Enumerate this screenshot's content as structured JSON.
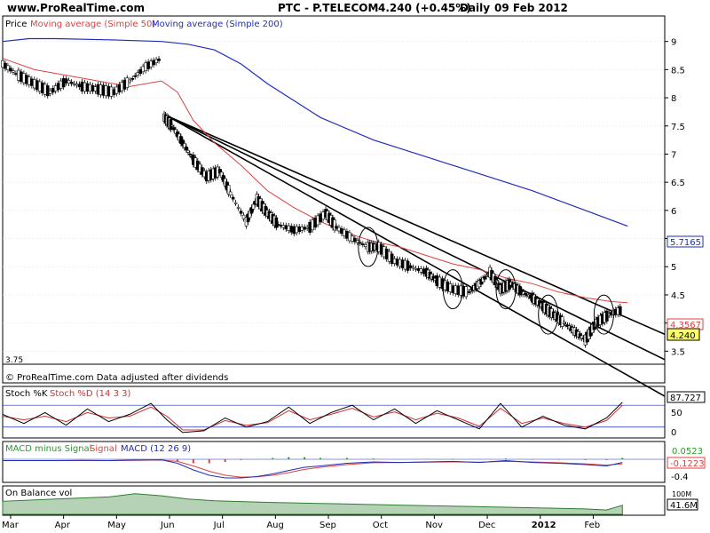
{
  "header": {
    "site": "www.ProRealTime.com",
    "symbol": "PTC - P.TELECOM",
    "quote": "4.240 (+0.45%)",
    "period": "Daily",
    "date": "09 Feb 2012"
  },
  "colors": {
    "price": "#000000",
    "ma50": "#e04040",
    "ma200": "#1f2fb8",
    "stoch_k": "#000000",
    "stoch_d": "#d03030",
    "macd_line": "#1f2fb8",
    "signal_line": "#e04040",
    "macd_hist": "#2a9a2a",
    "obv_fill": "#2f7d2f",
    "last_box": "#ffff66",
    "panel_bg": "#ffffff"
  },
  "main_panel": {
    "legend": {
      "price": "Price",
      "ma50": "Moving average (Simple 50)",
      "ma200": "Moving average (Simple 200)"
    },
    "footer_note": "© ProRealTime.com  Data adjusted after dividends",
    "bottom_left_value": "3.75",
    "last_price": "4.240",
    "ma200_last": "5.7165",
    "ma50_last": "4.3567"
  },
  "stoch_panel": {
    "legend_k": "Stoch %K",
    "legend_d": "Stoch %D (14 3 3)",
    "last_value": "87.727",
    "ticks": [
      "50",
      "0"
    ]
  },
  "macd_panel": {
    "legend_hist": "MACD minus Signal",
    "legend_signal": "Signal",
    "legend_macd": "MACD (12 26 9)",
    "last_hist": "0.0523",
    "last_macd": "-0.1223",
    "tick": "-0.4"
  },
  "obv_panel": {
    "legend": "On Balance vol",
    "last_value": "41.6M",
    "tick_partial": "100M"
  },
  "chart_data": {
    "type": "candlestick",
    "title": "PTC - P.TELECOM",
    "period": "Daily",
    "y_axis_main": {
      "ticks": [
        3.5,
        4,
        4.5,
        5,
        5.5,
        6,
        6.5,
        7,
        7.5,
        8,
        8.5,
        9
      ],
      "tick_labels": [
        "3.5",
        "4",
        "4.5",
        "5",
        "5.5",
        "6",
        "6.5",
        "7",
        "7.5",
        "8",
        "8.5",
        "9"
      ],
      "ylim": [
        3.3,
        9.2
      ]
    },
    "x_axis": {
      "labels": [
        "Mar",
        "Apr",
        "May",
        "Jun",
        "Jul",
        "Aug",
        "Sep",
        "Oct",
        "Nov",
        "Dec",
        "2012",
        "Feb"
      ],
      "xlim": [
        0,
        12.5
      ]
    },
    "close_series": {
      "name": "Price",
      "x": [
        0.0,
        0.3,
        0.6,
        0.9,
        1.2,
        1.5,
        1.8,
        2.1,
        2.4,
        2.7,
        3.0,
        3.05,
        3.2,
        3.4,
        3.6,
        3.85,
        4.1,
        4.3,
        4.6,
        4.8,
        5.0,
        5.2,
        5.5,
        5.8,
        6.1,
        6.3,
        6.6,
        6.9,
        7.1,
        7.4,
        7.7,
        8.0,
        8.2,
        8.5,
        8.8,
        9.0,
        9.2,
        9.4,
        9.6,
        9.8,
        10.0,
        10.2,
        10.4,
        10.6,
        10.8,
        11.0,
        11.2,
        11.45,
        11.7
      ],
      "y": [
        8.6,
        8.4,
        8.25,
        8.1,
        8.3,
        8.2,
        8.15,
        8.1,
        8.3,
        8.55,
        8.7,
        7.65,
        7.5,
        7.2,
        6.9,
        6.6,
        6.7,
        6.3,
        5.8,
        6.2,
        5.95,
        5.75,
        5.65,
        5.7,
        5.95,
        5.7,
        5.5,
        5.35,
        5.35,
        5.1,
        5.0,
        4.9,
        4.75,
        4.6,
        4.55,
        4.7,
        4.9,
        4.6,
        4.7,
        4.55,
        4.45,
        4.3,
        4.15,
        4.0,
        3.85,
        3.7,
        4.0,
        4.15,
        4.24
      ]
    },
    "ma50": {
      "name": "Moving average (Simple 50)",
      "x": [
        0.0,
        0.6,
        1.2,
        1.8,
        2.4,
        3.0,
        3.3,
        3.6,
        4.0,
        4.5,
        5.0,
        5.5,
        6.0,
        6.5,
        7.0,
        7.5,
        8.0,
        8.5,
        9.0,
        9.5,
        10.0,
        10.5,
        11.0,
        11.5,
        11.8
      ],
      "y": [
        8.7,
        8.5,
        8.4,
        8.3,
        8.2,
        8.3,
        8.1,
        7.6,
        7.2,
        6.8,
        6.35,
        6.05,
        5.8,
        5.6,
        5.45,
        5.35,
        5.2,
        5.05,
        4.95,
        4.8,
        4.7,
        4.55,
        4.45,
        4.38,
        4.36
      ]
    },
    "ma200": {
      "name": "Moving average (Simple 200)",
      "x": [
        0.0,
        0.5,
        1.0,
        2.0,
        3.0,
        3.5,
        4.0,
        4.5,
        5.0,
        6.0,
        7.0,
        8.0,
        9.0,
        10.0,
        11.0,
        11.8
      ],
      "y": [
        9.0,
        9.05,
        9.05,
        9.03,
        9.0,
        8.95,
        8.85,
        8.6,
        8.25,
        7.65,
        7.25,
        6.95,
        6.65,
        6.35,
        6.0,
        5.72
      ]
    },
    "trendlines": [
      {
        "x": [
          3.1,
          12.5
        ],
        "y": [
          7.68,
          3.8
        ]
      },
      {
        "x": [
          3.1,
          12.5
        ],
        "y": [
          7.68,
          3.35
        ]
      },
      {
        "x": [
          3.1,
          12.5
        ],
        "y": [
          7.68,
          2.7
        ]
      }
    ],
    "circled_x": [
      6.9,
      8.5,
      9.5,
      10.3,
      11.35
    ],
    "stochastic": {
      "ylim": [
        -5,
        100
      ],
      "guides": [
        80,
        20
      ],
      "k": {
        "x": [
          0,
          0.4,
          0.8,
          1.2,
          1.6,
          2.0,
          2.4,
          2.8,
          3.1,
          3.4,
          3.8,
          4.2,
          4.6,
          5.0,
          5.4,
          5.8,
          6.2,
          6.6,
          7.0,
          7.4,
          7.8,
          8.2,
          8.6,
          9.0,
          9.4,
          9.8,
          10.2,
          10.6,
          11.0,
          11.4,
          11.7
        ],
        "y": [
          55,
          30,
          60,
          25,
          70,
          35,
          55,
          85,
          40,
          5,
          10,
          45,
          20,
          35,
          75,
          30,
          60,
          80,
          40,
          70,
          30,
          65,
          40,
          15,
          85,
          20,
          50,
          25,
          15,
          45,
          88
        ]
      },
      "d": {
        "x": [
          0,
          0.4,
          0.8,
          1.2,
          1.6,
          2.0,
          2.4,
          2.8,
          3.1,
          3.4,
          3.8,
          4.2,
          4.6,
          5.0,
          5.4,
          5.8,
          6.2,
          6.6,
          7.0,
          7.4,
          7.8,
          8.2,
          8.6,
          9.0,
          9.4,
          9.8,
          10.2,
          10.6,
          11.0,
          11.4,
          11.7
        ],
        "y": [
          50,
          40,
          50,
          35,
          60,
          45,
          50,
          75,
          50,
          12,
          12,
          38,
          25,
          32,
          65,
          40,
          55,
          72,
          48,
          62,
          40,
          58,
          45,
          22,
          72,
          30,
          45,
          30,
          20,
          38,
          80
        ]
      }
    },
    "macd": {
      "ylim": [
        -0.8,
        0.2
      ],
      "x": [
        0,
        0.5,
        1.0,
        1.5,
        2.0,
        2.5,
        3.0,
        3.3,
        3.6,
        3.9,
        4.2,
        4.5,
        4.8,
        5.1,
        5.4,
        5.7,
        6.0,
        6.5,
        7.0,
        7.5,
        8.0,
        8.5,
        9.0,
        9.5,
        10.0,
        10.5,
        11.0,
        11.4,
        11.7
      ],
      "macd": [
        -0.05,
        -0.05,
        -0.05,
        -0.04,
        -0.05,
        -0.03,
        -0.02,
        -0.15,
        -0.4,
        -0.6,
        -0.7,
        -0.7,
        -0.65,
        -0.55,
        -0.42,
        -0.3,
        -0.25,
        -0.15,
        -0.1,
        -0.12,
        -0.1,
        -0.08,
        -0.12,
        -0.05,
        -0.12,
        -0.15,
        -0.2,
        -0.25,
        -0.12
      ],
      "signal": [
        -0.05,
        -0.05,
        -0.05,
        -0.05,
        -0.05,
        -0.04,
        -0.03,
        -0.08,
        -0.25,
        -0.45,
        -0.6,
        -0.67,
        -0.66,
        -0.6,
        -0.5,
        -0.38,
        -0.3,
        -0.2,
        -0.13,
        -0.12,
        -0.11,
        -0.1,
        -0.11,
        -0.08,
        -0.1,
        -0.13,
        -0.17,
        -0.22,
        -0.17
      ]
    },
    "obv": {
      "x": [
        0,
        1,
        2,
        2.5,
        3.0,
        3.5,
        4.0,
        5.0,
        6.0,
        7.0,
        8.0,
        9.0,
        10.0,
        11.0,
        11.4,
        11.7
      ],
      "y": [
        60,
        70,
        80,
        95,
        85,
        70,
        62,
        55,
        50,
        45,
        40,
        35,
        30,
        25,
        20,
        41.6
      ]
    }
  }
}
